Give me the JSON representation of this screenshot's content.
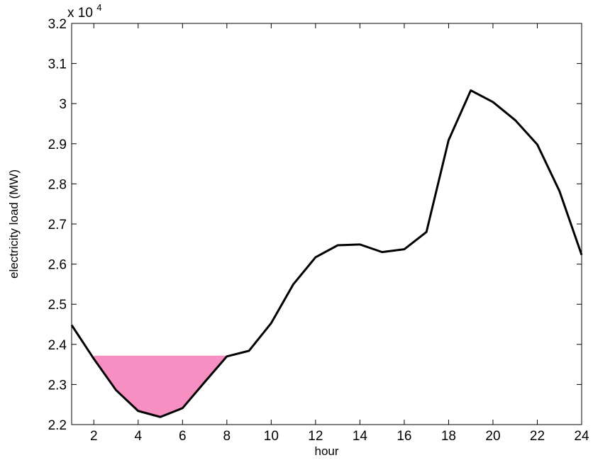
{
  "chart_data": {
    "type": "line",
    "xlabel": "hour",
    "ylabel": "electricity load (MW)",
    "y_exponent_label": {
      "base": "x 10",
      "exp": "4"
    },
    "xlim": [
      1,
      24
    ],
    "ylim": [
      22000,
      32000
    ],
    "x_ticks": [
      2,
      4,
      6,
      8,
      10,
      12,
      14,
      16,
      18,
      20,
      22,
      24
    ],
    "y_ticks": [
      22000,
      23000,
      24000,
      25000,
      26000,
      27000,
      28000,
      29000,
      30000,
      31000,
      32000
    ],
    "y_tick_labels": [
      "2.2",
      "2.3",
      "2.4",
      "2.5",
      "2.6",
      "2.7",
      "2.8",
      "2.9",
      "3",
      "3.1",
      "3.2"
    ],
    "grid": false,
    "series": [
      {
        "color": "#000000",
        "x": [
          1,
          2,
          3,
          4,
          5,
          6,
          7,
          8,
          9,
          10,
          11,
          12,
          13,
          14,
          15,
          16,
          17,
          18,
          19,
          20,
          21,
          22,
          23,
          24
        ],
        "values": [
          24480,
          23640,
          22860,
          22340,
          22190,
          22410,
          23060,
          23700,
          23840,
          24530,
          25500,
          26170,
          26470,
          26490,
          26300,
          26370,
          26800,
          29090,
          30330,
          30040,
          29590,
          28980,
          27820,
          26230
        ]
      }
    ],
    "fill": {
      "color": "#f78fc3",
      "level": 23700,
      "x_range": [
        2,
        8
      ]
    }
  }
}
